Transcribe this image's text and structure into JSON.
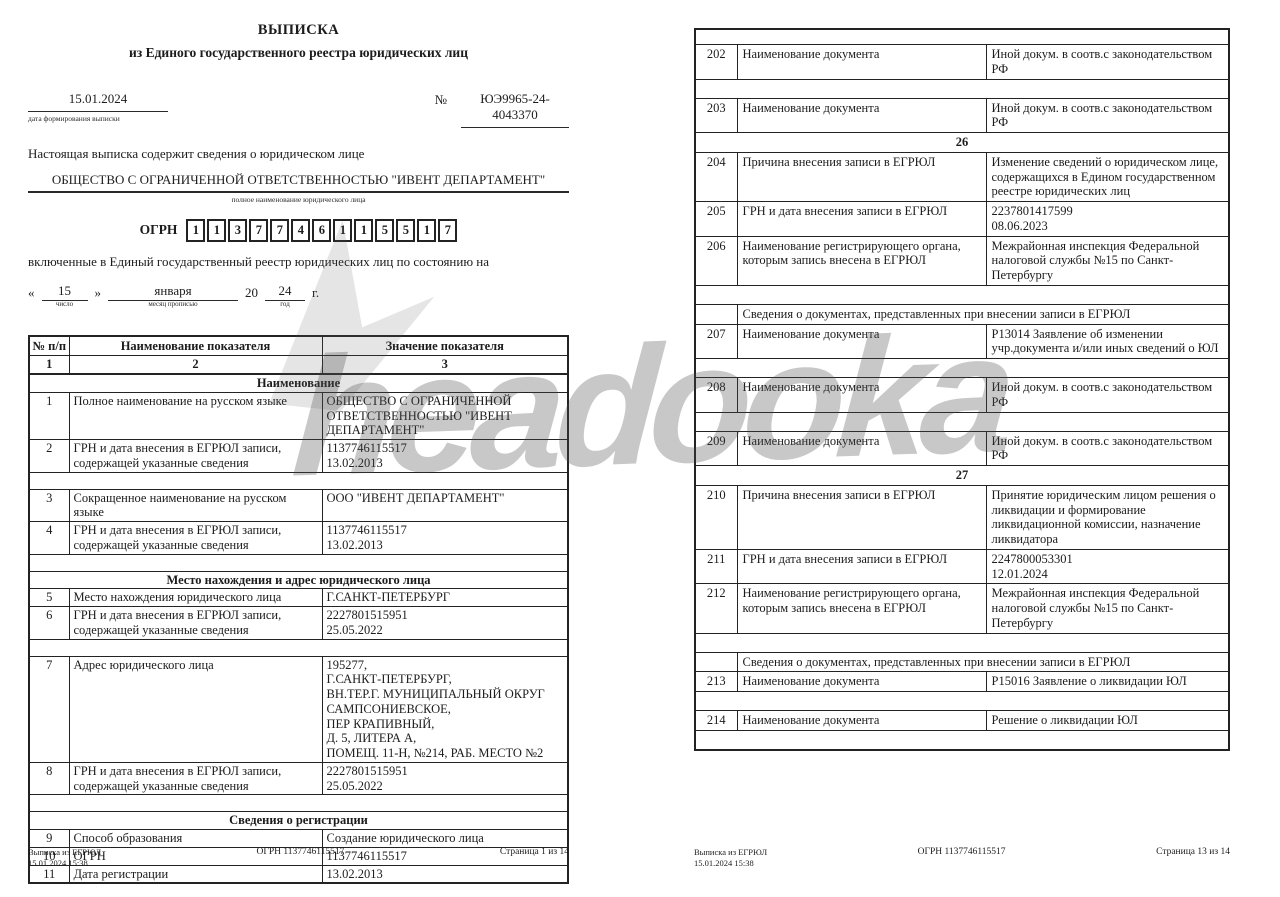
{
  "watermark": {
    "text": "headooka"
  },
  "page1": {
    "title": "ВЫПИСКА",
    "subtitle": "из Единого государственного реестра юридических лиц",
    "formation_date": "15.01.2024",
    "formation_date_label": "дата формирования выписки",
    "number_sign": "№",
    "number": "ЮЭ9965-24-4043370",
    "intro": "Настоящая выписка содержит сведения о юридическом лице",
    "company_name": "ОБЩЕСТВО С ОГРАНИЧЕННОЙ ОТВЕТСТВЕННОСТЬЮ \"ИВЕНТ ДЕПАРТАМЕНТ\"",
    "company_name_label": "полное наименование юридического лица",
    "ogrn_label": "ОГРН",
    "ogrn_digits": [
      "1",
      "1",
      "3",
      "7",
      "7",
      "4",
      "6",
      "1",
      "1",
      "5",
      "5",
      "1",
      "7"
    ],
    "included_line": "включенные в Единый государственный реестр юридических лиц по состоянию на",
    "fill_date": {
      "open_quote": "«",
      "day": "15",
      "close_quote": "»",
      "day_label": "число",
      "month": "января",
      "month_label": "месяц прописью",
      "century": "20",
      "year": "24",
      "year_label": "год",
      "year_suffix": "г."
    },
    "table": {
      "headers": [
        "№ п/п",
        "Наименование показателя",
        "Значение показателя"
      ],
      "column_numbers": [
        "1",
        "2",
        "3"
      ],
      "rows": [
        {
          "t": "sec",
          "text": "Наименование"
        },
        {
          "t": "row",
          "num": "1",
          "name": "Полное наименование на русском языке",
          "value": "ОБЩЕСТВО С ОГРАНИЧЕННОЙ\nОТВЕТСТВЕННОСТЬЮ \"ИВЕНТ\nДЕПАРТАМЕНТ\""
        },
        {
          "t": "row",
          "num": "2",
          "name": "ГРН и дата внесения в ЕГРЮЛ записи,\nсодержащей указанные сведения",
          "value": "1137746115517\n13.02.2013"
        },
        {
          "t": "sp"
        },
        {
          "t": "row",
          "num": "3",
          "name": "Сокращенное наименование на русском\nязыке",
          "value": "ООО \"ИВЕНТ ДЕПАРТАМЕНТ\""
        },
        {
          "t": "row",
          "num": "4",
          "name": "ГРН и дата внесения в ЕГРЮЛ записи,\nсодержащей указанные сведения",
          "value": "1137746115517\n13.02.2013"
        },
        {
          "t": "sp"
        },
        {
          "t": "sec",
          "text": "Место нахождения и адрес юридического лица"
        },
        {
          "t": "row",
          "num": "5",
          "name": "Место нахождения юридического лица",
          "value": "Г.САНКТ-ПЕТЕРБУРГ"
        },
        {
          "t": "row",
          "num": "6",
          "name": "ГРН и дата внесения в ЕГРЮЛ записи,\nсодержащей указанные сведения",
          "value": "2227801515951\n25.05.2022"
        },
        {
          "t": "sp"
        },
        {
          "t": "row",
          "num": "7",
          "name": "Адрес юридического лица",
          "value": "195277,\nГ.САНКТ-ПЕТЕРБУРГ,\nВН.ТЕР.Г. МУНИЦИПАЛЬНЫЙ ОКРУГ\nСАМПСОНИЕВСКОЕ,\nПЕР КРАПИВНЫЙ,\nД. 5, ЛИТЕРА А,\nПОМЕЩ. 11-Н, №214, РАБ. МЕСТО №2"
        },
        {
          "t": "row",
          "num": "8",
          "name": "ГРН и дата внесения в ЕГРЮЛ записи,\nсодержащей указанные сведения",
          "value": "2227801515951\n25.05.2022"
        },
        {
          "t": "sp"
        },
        {
          "t": "sec",
          "text": "Сведения о регистрации"
        },
        {
          "t": "row",
          "num": "9",
          "name": "Способ образования",
          "value": "Создание юридического лица"
        },
        {
          "t": "row",
          "num": "10",
          "name": "ОГРН",
          "value": "1137746115517"
        },
        {
          "t": "row",
          "num": "11",
          "name": "Дата регистрации",
          "value": "13.02.2013"
        }
      ]
    },
    "footer": {
      "left_line1": "Выписка из ЕГРЮЛ",
      "left_line2": "15.01.2024 15:38",
      "center": "ОГРН 1137746115517",
      "right": "Страница 1 из 14"
    }
  },
  "page13": {
    "table": {
      "rows": [
        {
          "t": "sp",
          "h": 10
        },
        {
          "t": "row",
          "num": "202",
          "name": "Наименование документа",
          "value": "Иной докум. в соотв.с законодательством\nРФ"
        },
        {
          "t": "sp"
        },
        {
          "t": "row",
          "num": "203",
          "name": "Наименование документа",
          "value": "Иной докум. в соотв.с законодательством\nРФ"
        },
        {
          "t": "sec",
          "text": "26"
        },
        {
          "t": "row",
          "num": "204",
          "name": "Причина внесения записи в ЕГРЮЛ",
          "value": "Изменение сведений о юридическом лице,\nсодержащихся в Едином государственном\nреестре юридических лиц"
        },
        {
          "t": "row",
          "num": "205",
          "name": "ГРН и дата внесения записи в ЕГРЮЛ",
          "value": "2237801417599\n08.06.2023"
        },
        {
          "t": "row",
          "num": "206",
          "name": "Наименование регистрирующего органа,\nкоторым запись внесена в ЕГРЮЛ",
          "value": "Межрайонная инспекция Федеральной\nналоговой службы №15 по Санкт-\nПетербургу"
        },
        {
          "t": "sp"
        },
        {
          "t": "sub",
          "text": "Сведения о документах, представленных при внесении записи в ЕГРЮЛ"
        },
        {
          "t": "row",
          "num": "207",
          "name": "Наименование документа",
          "value": "Р13014 Заявление об изменении\nучр.документа и/или иных сведений о ЮЛ"
        },
        {
          "t": "sp"
        },
        {
          "t": "row",
          "num": "208",
          "name": "Наименование документа",
          "value": "Иной докум. в соотв.с законодательством\nРФ"
        },
        {
          "t": "sp"
        },
        {
          "t": "row",
          "num": "209",
          "name": "Наименование документа",
          "value": "Иной докум. в соотв.с законодательством\nРФ"
        },
        {
          "t": "sec",
          "text": "27"
        },
        {
          "t": "row",
          "num": "210",
          "name": "Причина внесения записи в ЕГРЮЛ",
          "value": "Принятие юридическим лицом решения о\nликвидации и формирование\nликвидационной комиссии, назначение\nликвидатора"
        },
        {
          "t": "row",
          "num": "211",
          "name": "ГРН и дата внесения записи в ЕГРЮЛ",
          "value": "2247800053301\n12.01.2024"
        },
        {
          "t": "row",
          "num": "212",
          "name": "Наименование регистрирующего органа,\nкоторым запись внесена в ЕГРЮЛ",
          "value": "Межрайонная инспекция Федеральной\nналоговой службы №15 по Санкт-\nПетербургу"
        },
        {
          "t": "sp"
        },
        {
          "t": "sub",
          "text": "Сведения о документах, представленных при внесении записи в ЕГРЮЛ"
        },
        {
          "t": "row",
          "num": "213",
          "name": "Наименование документа",
          "value": "Р15016 Заявление о ликвидации ЮЛ"
        },
        {
          "t": "sp"
        },
        {
          "t": "row",
          "num": "214",
          "name": "Наименование документа",
          "value": "Решение о ликвидации ЮЛ"
        },
        {
          "t": "sp"
        }
      ]
    },
    "footer": {
      "left_line1": "Выписка из ЕГРЮЛ",
      "left_line2": "15.01.2024 15:38",
      "center": "ОГРН 1137746115517",
      "right": "Страница 13 из 14"
    }
  }
}
